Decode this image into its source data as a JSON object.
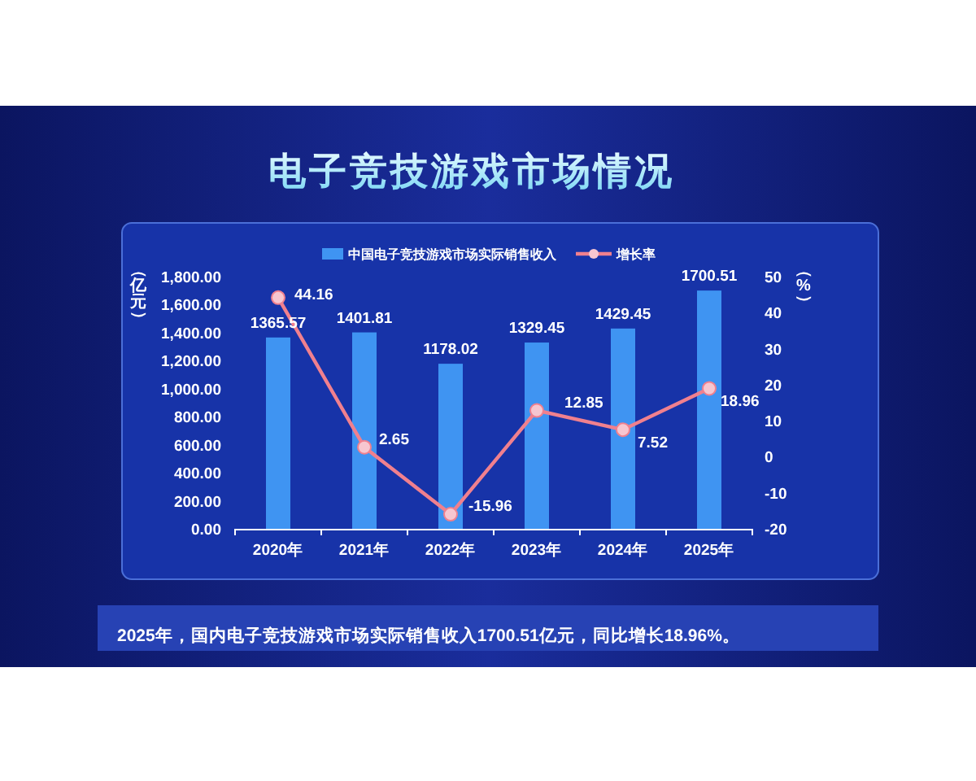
{
  "chart_data": {
    "type": "bar",
    "title": "电子竞技游戏市场情况",
    "categories": [
      "2020年",
      "2021年",
      "2022年",
      "2023年",
      "2024年",
      "2025年"
    ],
    "series": [
      {
        "name": "中国电子竞技游戏市场实际销售收入",
        "color": "#3f94f2",
        "values": [
          1365.57,
          1401.81,
          1178.02,
          1329.45,
          1429.45,
          1700.51
        ]
      },
      {
        "name": "增长率",
        "type": "line",
        "axis": "y2",
        "color": "#f0808e",
        "marker": "circle",
        "values": [
          44.16,
          2.65,
          -15.96,
          12.85,
          7.52,
          18.96
        ]
      }
    ],
    "ylabel": "（亿元）",
    "y2label": "（%）",
    "ylim": [
      0,
      1800
    ],
    "yticks": [
      {
        "value": 0,
        "label": "0.00"
      },
      {
        "value": 200,
        "label": "200.00"
      },
      {
        "value": 400,
        "label": "400.00"
      },
      {
        "value": 600,
        "label": "600.00"
      },
      {
        "value": 800,
        "label": "800.00"
      },
      {
        "value": 1000,
        "label": "1,000.00"
      },
      {
        "value": 1200,
        "label": "1,200.00"
      },
      {
        "value": 1400,
        "label": "1,400.00"
      },
      {
        "value": 1600,
        "label": "1,600.00"
      },
      {
        "value": 1800,
        "label": "1,800.00"
      }
    ],
    "y2lim": [
      -20,
      50
    ],
    "y2ticks": [
      -20,
      -10,
      0,
      10,
      20,
      30,
      40,
      50
    ],
    "data_labels": true,
    "legend": "top",
    "grid": false,
    "annotations": [
      "2025年，国内电子竞技游戏市场实际销售收入1700.51亿元，同比增长18.96%。"
    ]
  }
}
